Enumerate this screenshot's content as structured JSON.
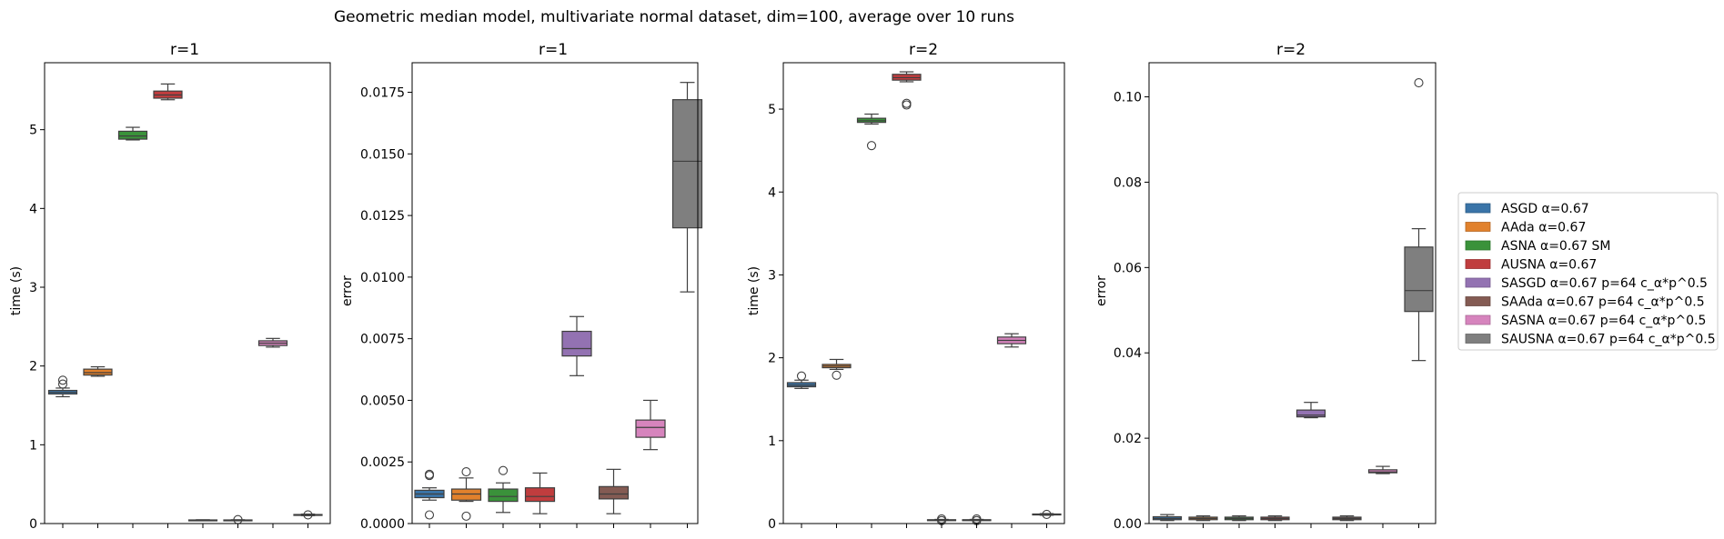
{
  "figure": {
    "suptitle": "Geometric median model, multivariate normal dataset, dim=100, average over 10 runs",
    "colors": [
      "#3a74a8",
      "#e1812c",
      "#3a923a",
      "#c03d3e",
      "#9372b2",
      "#845b53",
      "#d684bd",
      "#7f7f7f"
    ]
  },
  "legend": {
    "placement": "center-right",
    "entries": [
      "ASGD α=0.67",
      "AAda α=0.67",
      "ASNA α=0.67 SM",
      "AUSNA α=0.67",
      "SASGD α=0.67 p=64 c_α*p^0.5",
      "SAAda α=0.67 p=64 c_α*p^0.5",
      "SASNA α=0.67 p=64 c_α*p^0.5",
      "SAUSNA α=0.67 p=64 c_α*p^0.5"
    ]
  },
  "chart_data": [
    {
      "type": "box",
      "title": "r=1",
      "ylabel": "time (s)",
      "ylim": [
        0,
        5.85
      ],
      "yticks": [
        0,
        1,
        2,
        3,
        4,
        5
      ],
      "ytick_labels": [
        "0",
        "1",
        "2",
        "3",
        "4",
        "5"
      ],
      "boxes": [
        {
          "whislo": 1.61,
          "q1": 1.645,
          "med": 1.665,
          "q3": 1.69,
          "whishi": 1.72,
          "fliers": [
            1.77,
            1.82
          ]
        },
        {
          "whislo": 1.87,
          "q1": 1.885,
          "med": 1.915,
          "q3": 1.96,
          "whishi": 1.99,
          "fliers": []
        },
        {
          "whislo": 4.87,
          "q1": 4.88,
          "med": 4.92,
          "q3": 4.98,
          "whishi": 5.03,
          "fliers": []
        },
        {
          "whislo": 5.38,
          "q1": 5.4,
          "med": 5.44,
          "q3": 5.49,
          "whishi": 5.58,
          "fliers": []
        },
        {
          "whislo": 0.04,
          "q1": 0.042,
          "med": 0.044,
          "q3": 0.046,
          "whishi": 0.048,
          "fliers": []
        },
        {
          "whislo": 0.04,
          "q1": 0.042,
          "med": 0.044,
          "q3": 0.046,
          "whishi": 0.048,
          "fliers": [
            0.05
          ]
        },
        {
          "whislo": 2.24,
          "q1": 2.26,
          "med": 2.29,
          "q3": 2.32,
          "whishi": 2.35,
          "fliers": []
        },
        {
          "whislo": 0.1,
          "q1": 0.105,
          "med": 0.11,
          "q3": 0.115,
          "whishi": 0.12,
          "fliers": [
            0.11
          ]
        }
      ]
    },
    {
      "type": "box",
      "title": "r=1",
      "ylabel": "error",
      "ylim": [
        0,
        0.0187
      ],
      "yticks": [
        0,
        0.0025,
        0.005,
        0.0075,
        0.01,
        0.0125,
        0.015,
        0.0175
      ],
      "ytick_labels": [
        "0.0000",
        "0.0025",
        "0.0050",
        "0.0075",
        "0.0100",
        "0.0125",
        "0.0150",
        "0.0175"
      ],
      "boxes": [
        {
          "whislo": 0.00095,
          "q1": 0.00105,
          "med": 0.0012,
          "q3": 0.00135,
          "whishi": 0.00145,
          "fliers": [
            0.00195,
            0.002,
            0.00035
          ]
        },
        {
          "whislo": 0.0009,
          "q1": 0.00095,
          "med": 0.0012,
          "q3": 0.0014,
          "whishi": 0.00185,
          "fliers": [
            0.0021,
            0.0003
          ]
        },
        {
          "whislo": 0.00045,
          "q1": 0.0009,
          "med": 0.0011,
          "q3": 0.0014,
          "whishi": 0.00165,
          "fliers": [
            0.00215
          ]
        },
        {
          "whislo": 0.0004,
          "q1": 0.0009,
          "med": 0.0011,
          "q3": 0.00145,
          "whishi": 0.00205,
          "fliers": []
        },
        {
          "whislo": 0.006,
          "q1": 0.0068,
          "med": 0.0071,
          "q3": 0.0078,
          "whishi": 0.0084,
          "fliers": []
        },
        {
          "whislo": 0.0004,
          "q1": 0.001,
          "med": 0.0012,
          "q3": 0.0015,
          "whishi": 0.0022,
          "fliers": []
        },
        {
          "whislo": 0.003,
          "q1": 0.0035,
          "med": 0.0039,
          "q3": 0.0042,
          "whishi": 0.005,
          "fliers": []
        },
        {
          "whislo": 0.0094,
          "q1": 0.012,
          "med": 0.0147,
          "q3": 0.0172,
          "whishi": 0.0179,
          "fliers": []
        }
      ]
    },
    {
      "type": "box",
      "title": "r=2",
      "ylabel": "time (s)",
      "ylim": [
        0,
        5.56
      ],
      "yticks": [
        0,
        1,
        2,
        3,
        4,
        5
      ],
      "ytick_labels": [
        "0",
        "1",
        "2",
        "3",
        "4",
        "5"
      ],
      "boxes": [
        {
          "whislo": 1.63,
          "q1": 1.65,
          "med": 1.67,
          "q3": 1.7,
          "whishi": 1.73,
          "fliers": [
            1.78
          ]
        },
        {
          "whislo": 1.86,
          "q1": 1.88,
          "med": 1.9,
          "q3": 1.92,
          "whishi": 1.98,
          "fliers": [
            1.79
          ]
        },
        {
          "whislo": 4.82,
          "q1": 4.84,
          "med": 4.86,
          "q3": 4.89,
          "whishi": 4.94,
          "fliers": [
            4.56
          ]
        },
        {
          "whislo": 5.33,
          "q1": 5.35,
          "med": 5.38,
          "q3": 5.42,
          "whishi": 5.45,
          "fliers": [
            5.05,
            5.07
          ]
        },
        {
          "whislo": 0.04,
          "q1": 0.042,
          "med": 0.044,
          "q3": 0.046,
          "whishi": 0.05,
          "fliers": [
            0.055,
            0.035
          ]
        },
        {
          "whislo": 0.04,
          "q1": 0.042,
          "med": 0.044,
          "q3": 0.046,
          "whishi": 0.05,
          "fliers": [
            0.055,
            0.035
          ]
        },
        {
          "whislo": 2.13,
          "q1": 2.17,
          "med": 2.21,
          "q3": 2.25,
          "whishi": 2.29,
          "fliers": []
        },
        {
          "whislo": 0.1,
          "q1": 0.105,
          "med": 0.11,
          "q3": 0.115,
          "whishi": 0.12,
          "fliers": [
            0.11
          ]
        }
      ]
    },
    {
      "type": "box",
      "title": "r=2",
      "ylabel": "error",
      "ylim": [
        0,
        0.108
      ],
      "yticks": [
        0,
        0.02,
        0.04,
        0.06,
        0.08,
        0.1
      ],
      "ytick_labels": [
        "0.00",
        "0.02",
        "0.04",
        "0.06",
        "0.08",
        "0.10"
      ],
      "boxes": [
        {
          "whislo": 0.0007,
          "q1": 0.0009,
          "med": 0.0012,
          "q3": 0.0016,
          "whishi": 0.0021,
          "fliers": []
        },
        {
          "whislo": 0.0007,
          "q1": 0.0009,
          "med": 0.0012,
          "q3": 0.0015,
          "whishi": 0.0018,
          "fliers": []
        },
        {
          "whislo": 0.0007,
          "q1": 0.0009,
          "med": 0.0012,
          "q3": 0.0015,
          "whishi": 0.0018,
          "fliers": []
        },
        {
          "whislo": 0.0007,
          "q1": 0.0009,
          "med": 0.0012,
          "q3": 0.0015,
          "whishi": 0.0018,
          "fliers": []
        },
        {
          "whislo": 0.0248,
          "q1": 0.025,
          "med": 0.0254,
          "q3": 0.0266,
          "whishi": 0.0284,
          "fliers": []
        },
        {
          "whislo": 0.0007,
          "q1": 0.0009,
          "med": 0.0012,
          "q3": 0.0015,
          "whishi": 0.0018,
          "fliers": []
        },
        {
          "whislo": 0.0117,
          "q1": 0.0119,
          "med": 0.0121,
          "q3": 0.0126,
          "whishi": 0.0134,
          "fliers": []
        },
        {
          "whislo": 0.0382,
          "q1": 0.0497,
          "med": 0.0546,
          "q3": 0.0648,
          "whishi": 0.0691,
          "fliers": [
            0.1033
          ]
        }
      ]
    }
  ]
}
